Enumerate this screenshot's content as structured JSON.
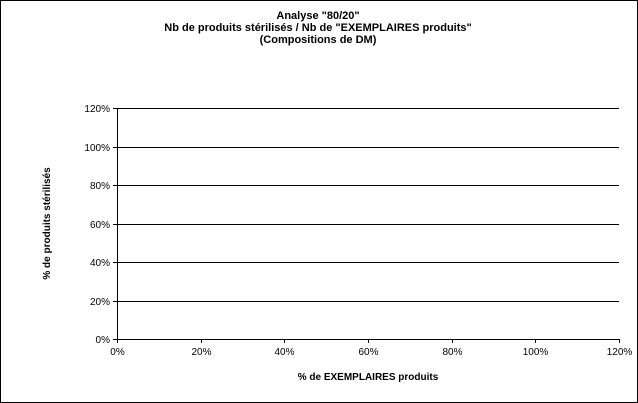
{
  "chart_data": {
    "type": "line",
    "title_lines": [
      "Analyse \"80/20\"",
      "Nb de produits stérilisés / Nb de \"EXEMPLAIRES produits\"",
      "(Compositions de DM)"
    ],
    "xlabel": "% de EXEMPLAIRES produits",
    "ylabel": "% de produits stérilisés",
    "xlim": [
      0,
      120
    ],
    "ylim": [
      0,
      120
    ],
    "x_ticks": [
      0,
      20,
      40,
      60,
      80,
      100,
      120
    ],
    "y_ticks": [
      0,
      20,
      40,
      60,
      80,
      100,
      120
    ],
    "x_tick_labels": [
      "0%",
      "20%",
      "40%",
      "60%",
      "80%",
      "100%",
      "120%"
    ],
    "y_tick_labels": [
      "0%",
      "20%",
      "40%",
      "60%",
      "80%",
      "100%",
      "120%"
    ],
    "grid": "horizontal",
    "series": []
  }
}
